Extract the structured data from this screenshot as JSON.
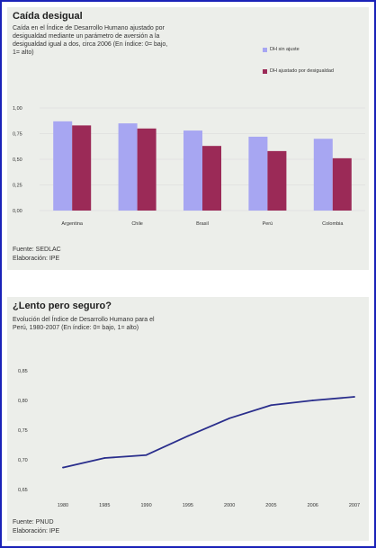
{
  "panel1": {
    "title": "Caída desigual",
    "description": "Caída en el Índice de Desarrollo Humano ajustado por\ndesigualdad mediante un parámetro de aversión a la\ndesigualdad igual a dos, circa 2006 (En índice: 0= bajo,\n1= alto)",
    "source": "Fuente: SEDLAC",
    "elaboration": "Elaboración: IPE"
  },
  "panel2": {
    "title": "¿Lento pero seguro?",
    "description": "Evolución del Índice de Desarrollo Humano para el\nPerú, 1980-2007 (En índice: 0= bajo, 1= alto)",
    "source": "Fuente: PNUD",
    "elaboration": "Elaboración: IPE"
  },
  "colors": {
    "series1": "#a7a6f2",
    "series2": "#9b2a57",
    "line": "#2a2e8c",
    "grid": "#d8d8d8"
  },
  "chart_data": [
    {
      "type": "bar",
      "categories": [
        "Argentina",
        "Chile",
        "Brasil",
        "Perú",
        "Colombia"
      ],
      "series": [
        {
          "name": "DH sin ajuste",
          "values": [
            0.87,
            0.85,
            0.78,
            0.72,
            0.7
          ]
        },
        {
          "name": "DH ajustado por desigualdad",
          "values": [
            0.83,
            0.8,
            0.63,
            0.58,
            0.51
          ]
        }
      ],
      "ylim": [
        0,
        1
      ],
      "yticks": [
        "1,00",
        "0,75",
        "0,50",
        "0,25",
        "0,00"
      ],
      "ytick_values": [
        1.0,
        0.75,
        0.5,
        0.25,
        0.0
      ],
      "grid": true,
      "legend_position": "top-right"
    },
    {
      "type": "line",
      "categories": [
        "1980",
        "1985",
        "1990",
        "1995",
        "2000",
        "2005",
        "2006",
        "2007"
      ],
      "values": [
        0.687,
        0.703,
        0.708,
        0.74,
        0.77,
        0.792,
        0.8,
        0.806
      ],
      "ylim": [
        0.65,
        0.85
      ],
      "yticks": [
        "0,85",
        "0,80",
        "0,75",
        "0,70",
        "0,65"
      ],
      "ytick_values": [
        0.85,
        0.8,
        0.75,
        0.7,
        0.65
      ],
      "grid": false
    }
  ]
}
